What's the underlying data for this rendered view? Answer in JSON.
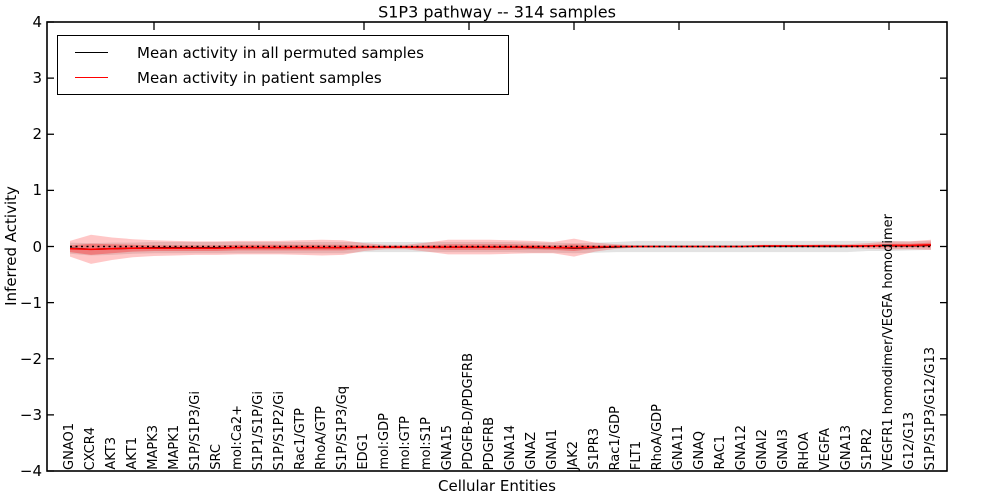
{
  "title": "S1P3 pathway -- 314 samples",
  "axes": {
    "ylabel": "Inferred Activity",
    "xlabel": "Cellular Entities",
    "yticks": [
      4,
      3,
      2,
      1,
      0,
      -1,
      -2,
      -3,
      -4
    ],
    "ytick_labels": [
      "4",
      "3",
      "2",
      "1",
      "0",
      "−1",
      "−2",
      "−3",
      "−4"
    ]
  },
  "colors": {
    "permuted_line": "#000000",
    "patient_line": "#ff0000",
    "permuted_band": "rgba(0,0,0,0.11)",
    "patient_band": "rgba(255,0,0,0.22)",
    "patient_band_inner": "rgba(255,0,0,0.30)",
    "axis": "#000000"
  },
  "chart_data": {
    "type": "line",
    "title": "S1P3 pathway -- 314 samples",
    "xlabel": "Cellular Entities",
    "ylabel": "Inferred Activity",
    "ylim": [
      -4,
      4
    ],
    "grid": false,
    "legend_position": "upper left",
    "zero_line": true,
    "categories": [
      "GNAO1",
      "CXCR4",
      "AKT3",
      "AKT1",
      "MAPK3",
      "MAPK1",
      "S1P/S1P3/Gi",
      "SRC",
      "mol:Ca2+",
      "S1P1/S1P/Gi",
      "S1P/S1P2/Gi",
      "Rac1/GTP",
      "RhoA/GTP",
      "S1P/S1P3/Gq",
      "EDG1",
      "mol:GDP",
      "mol:GTP",
      "mol:S1P",
      "GNA15",
      "PDGFB-D/PDGFRB",
      "PDGFRB",
      "GNA14",
      "GNAZ",
      "GNAI1",
      "JAK2",
      "S1PR3",
      "Rac1/GDP",
      "FLT1",
      "RhoA/GDP",
      "GNA11",
      "GNAQ",
      "RAC1",
      "GNA12",
      "GNAI2",
      "GNAI3",
      "RHOA",
      "VEGFA",
      "GNA13",
      "S1PR2",
      "VEGFR1 homodimer/VEGFA homodimer",
      "G12/G13",
      "S1P/S1P3/G12/G13"
    ],
    "series": [
      {
        "name": "Mean activity in all permuted samples",
        "color": "#000000",
        "values": [
          -0.03,
          -0.05,
          -0.04,
          -0.03,
          -0.02,
          -0.02,
          -0.02,
          -0.02,
          -0.02,
          -0.02,
          -0.02,
          -0.02,
          -0.02,
          -0.02,
          -0.01,
          -0.01,
          -0.01,
          -0.01,
          -0.01,
          -0.01,
          -0.01,
          -0.01,
          -0.02,
          -0.02,
          -0.03,
          -0.02,
          -0.01,
          0,
          0,
          0,
          0,
          0,
          0,
          0,
          0,
          0,
          0,
          0,
          0.01,
          0.01,
          0.01,
          0.02
        ],
        "band_halfwidth": [
          0.1,
          0.11,
          0.11,
          0.1,
          0.1,
          0.1,
          0.1,
          0.1,
          0.1,
          0.1,
          0.1,
          0.1,
          0.1,
          0.1,
          0.09,
          0.09,
          0.09,
          0.09,
          0.09,
          0.09,
          0.09,
          0.09,
          0.09,
          0.09,
          0.09,
          0.09,
          0.09,
          0.1,
          0.1,
          0.1,
          0.1,
          0.1,
          0.1,
          0.1,
          0.1,
          0.1,
          0.1,
          0.1,
          0.09,
          0.09,
          0.08,
          0.08
        ]
      },
      {
        "name": "Mean activity in patient samples",
        "color": "#ff0000",
        "values": [
          -0.04,
          -0.05,
          -0.04,
          -0.03,
          -0.03,
          -0.03,
          -0.03,
          -0.03,
          -0.02,
          -0.02,
          -0.02,
          -0.02,
          -0.02,
          -0.02,
          -0.01,
          -0.01,
          -0.01,
          -0.01,
          -0.01,
          -0.01,
          -0.01,
          -0.01,
          -0.01,
          -0.02,
          -0.02,
          -0.01,
          0,
          0,
          0,
          0,
          0,
          0,
          0,
          0.01,
          0.01,
          0.01,
          0.01,
          0.01,
          0.01,
          0.02,
          0.02,
          0.03
        ],
        "band_halfwidth": [
          0.14,
          0.26,
          0.2,
          0.16,
          0.14,
          0.13,
          0.12,
          0.12,
          0.12,
          0.12,
          0.12,
          0.13,
          0.14,
          0.13,
          0.07,
          0.04,
          0.04,
          0.08,
          0.13,
          0.13,
          0.13,
          0.12,
          0.11,
          0.1,
          0.16,
          0.08,
          0.04,
          0.02,
          0.02,
          0.02,
          0.02,
          0.02,
          0.02,
          0.02,
          0.02,
          0.02,
          0.03,
          0.03,
          0.05,
          0.07,
          0.07,
          0.09
        ],
        "inner_band_halfwidth": [
          0.06,
          0.1,
          0.08,
          0.06,
          0.05,
          0.05,
          0.05,
          0.05,
          0.05,
          0.05,
          0.05,
          0.05,
          0.05,
          0.05,
          0.03,
          0.02,
          0.02,
          0.03,
          0.05,
          0.05,
          0.05,
          0.05,
          0.04,
          0.04,
          0.06,
          0.03,
          0.02,
          0.01,
          0.01,
          0.01,
          0.01,
          0.01,
          0.01,
          0.01,
          0.01,
          0.01,
          0.01,
          0.01,
          0.02,
          0.03,
          0.03,
          0.04
        ]
      }
    ]
  },
  "legend": {
    "entries": [
      {
        "label": "Mean activity in all permuted samples",
        "color": "#000000"
      },
      {
        "label": "Mean activity in patient samples",
        "color": "#ff0000"
      }
    ]
  }
}
